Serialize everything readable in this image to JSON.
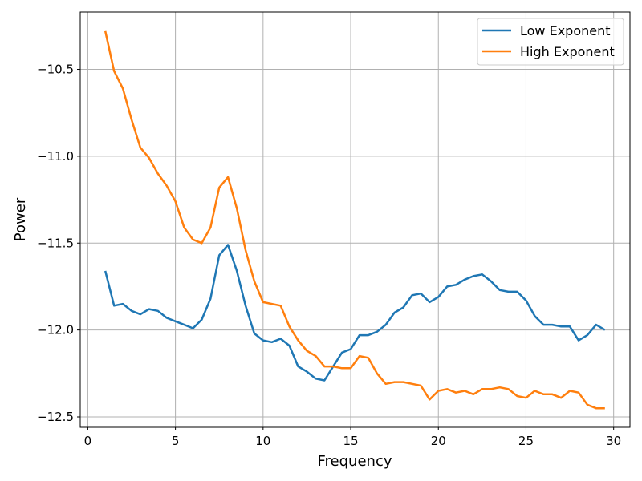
{
  "chart_data": {
    "type": "line",
    "title": "",
    "xlabel": "Frequency",
    "ylabel": "Power",
    "xlim": [
      -0.43,
      30.93
    ],
    "ylim": [
      -12.56,
      -10.17
    ],
    "xticks": [
      0,
      5,
      10,
      15,
      20,
      25,
      30
    ],
    "xtick_labels": [
      "0",
      "5",
      "10",
      "15",
      "20",
      "25",
      "30"
    ],
    "yticks": [
      -10.5,
      -11.0,
      -11.5,
      -12.0,
      -12.5
    ],
    "ytick_labels": [
      "−10.5",
      "−11.0",
      "−11.5",
      "−12.0",
      "−12.5"
    ],
    "grid": true,
    "legend_position": "top-right",
    "x": [
      1,
      1.5,
      2,
      2.5,
      3,
      3.5,
      4,
      4.5,
      5,
      5.5,
      6,
      6.5,
      7,
      7.5,
      8,
      8.5,
      9,
      9.5,
      10,
      10.5,
      11,
      11.5,
      12,
      12.5,
      13,
      13.5,
      14,
      14.5,
      15,
      15.5,
      16,
      16.5,
      17,
      17.5,
      18,
      18.5,
      19,
      19.5,
      20,
      20.5,
      21,
      21.5,
      22,
      22.5,
      23,
      23.5,
      24,
      24.5,
      25,
      25.5,
      26,
      26.5,
      27,
      27.5,
      28,
      28.5,
      29,
      29.5
    ],
    "series": [
      {
        "name": "Low Exponent",
        "color": "#1f77b4",
        "values": [
          -11.66,
          -11.86,
          -11.85,
          -11.89,
          -11.91,
          -11.88,
          -11.89,
          -11.93,
          -11.95,
          -11.97,
          -11.99,
          -11.94,
          -11.82,
          -11.57,
          -11.51,
          -11.66,
          -11.86,
          -12.02,
          -12.06,
          -12.07,
          -12.05,
          -12.09,
          -12.21,
          -12.24,
          -12.28,
          -12.29,
          -12.21,
          -12.13,
          -12.11,
          -12.03,
          -12.03,
          -12.01,
          -11.97,
          -11.9,
          -11.87,
          -11.8,
          -11.79,
          -11.84,
          -11.81,
          -11.75,
          -11.74,
          -11.71,
          -11.69,
          -11.68,
          -11.72,
          -11.77,
          -11.78,
          -11.78,
          -11.83,
          -11.92,
          -11.97,
          -11.97,
          -11.98,
          -11.98,
          -12.06,
          -12.03,
          -11.97,
          -12.0
        ]
      },
      {
        "name": "High Exponent",
        "color": "#ff7f0e",
        "values": [
          -10.28,
          -10.51,
          -10.61,
          -10.79,
          -10.95,
          -11.01,
          -11.1,
          -11.17,
          -11.26,
          -11.41,
          -11.48,
          -11.5,
          -11.41,
          -11.18,
          -11.12,
          -11.3,
          -11.54,
          -11.72,
          -11.84,
          -11.85,
          -11.86,
          -11.98,
          -12.06,
          -12.12,
          -12.15,
          -12.21,
          -12.21,
          -12.22,
          -12.22,
          -12.15,
          -12.16,
          -12.25,
          -12.31,
          -12.3,
          -12.3,
          -12.31,
          -12.32,
          -12.4,
          -12.35,
          -12.34,
          -12.36,
          -12.35,
          -12.37,
          -12.34,
          -12.34,
          -12.33,
          -12.34,
          -12.38,
          -12.39,
          -12.35,
          -12.37,
          -12.37,
          -12.39,
          -12.35,
          -12.36,
          -12.43,
          -12.45,
          -12.45
        ]
      }
    ]
  }
}
